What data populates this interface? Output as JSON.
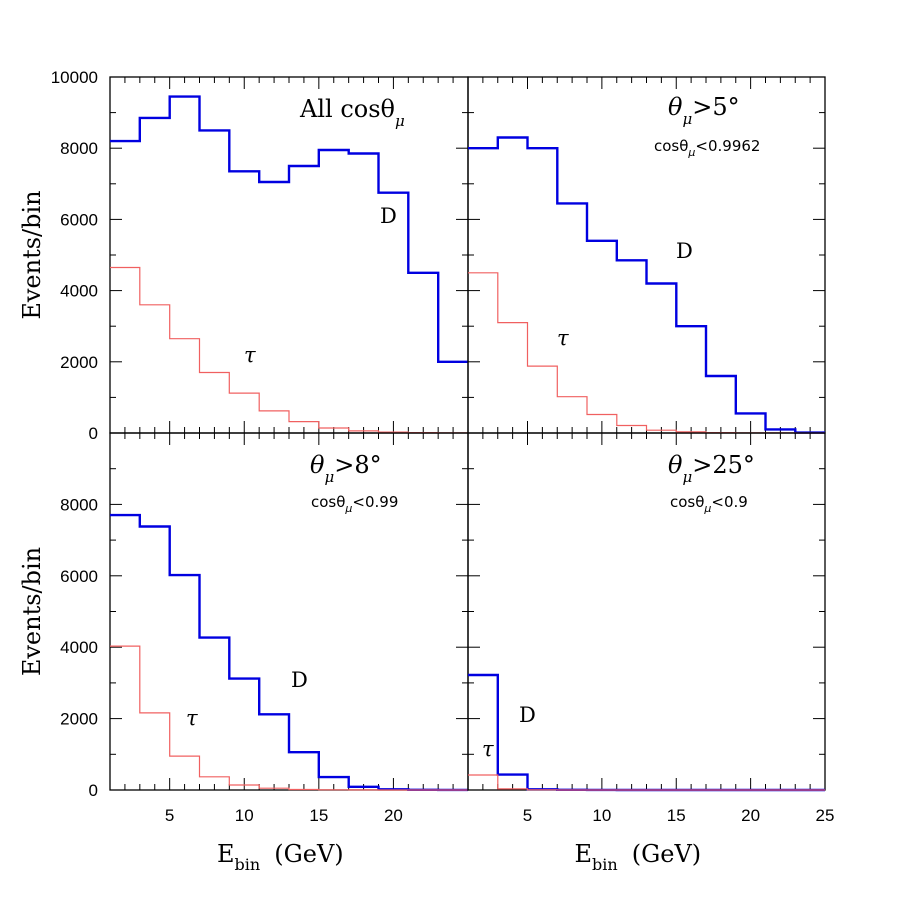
{
  "chart_data": [
    {
      "type": "line",
      "panel": "top-left",
      "title": "All cosθ",
      "title_subscript": "μ",
      "subtitle": "",
      "ylabel": "Events/bin",
      "xlabel": "",
      "xlim": [
        1,
        25
      ],
      "ylim": [
        0,
        10000
      ],
      "y_ticks": [
        "0",
        "2000",
        "4000",
        "6000",
        "8000",
        "10000"
      ],
      "x_ticks": [],
      "bin_edges": [
        1,
        3,
        5,
        7,
        9,
        11,
        13,
        15,
        17,
        19,
        21,
        23,
        25
      ],
      "series": [
        {
          "name": "D",
          "color": "#0000e0",
          "values": [
            8200,
            8850,
            9450,
            8500,
            7350,
            7050,
            7500,
            7950,
            7850,
            6750,
            4500,
            2000
          ]
        },
        {
          "name": "τ",
          "color": "#f06060",
          "values": [
            4650,
            3600,
            2650,
            1700,
            1120,
            620,
            320,
            140,
            60,
            25,
            10,
            5
          ]
        }
      ]
    },
    {
      "type": "line",
      "panel": "top-right",
      "title": "θ",
      "title_subscript": "μ",
      "title_suffix": ">5°",
      "subtitle": "cosθ",
      "subtitle_subscript": "μ",
      "subtitle_suffix": "<0.9962",
      "ylabel": "",
      "xlabel": "",
      "xlim": [
        1,
        25
      ],
      "ylim": [
        0,
        10000
      ],
      "y_ticks": [],
      "x_ticks": [],
      "bin_edges": [
        1,
        3,
        5,
        7,
        9,
        11,
        13,
        15,
        17,
        19,
        21,
        23,
        25
      ],
      "series": [
        {
          "name": "D",
          "color": "#0000e0",
          "values": [
            8000,
            8300,
            8000,
            6450,
            5400,
            4850,
            4200,
            3000,
            1600,
            550,
            100,
            10
          ]
        },
        {
          "name": "τ",
          "color": "#f06060",
          "values": [
            4500,
            3100,
            1880,
            1020,
            520,
            210,
            80,
            30,
            10,
            5,
            2,
            1
          ]
        }
      ]
    },
    {
      "type": "line",
      "panel": "bottom-left",
      "title": "θ",
      "title_subscript": "μ",
      "title_suffix": ">8°",
      "subtitle": "cosθ",
      "subtitle_subscript": "μ",
      "subtitle_suffix": "<0.99",
      "ylabel": "Events/bin",
      "xlabel": "E",
      "xlabel_subscript": "bin",
      "xlabel_suffix": "(GeV)",
      "xlim": [
        1,
        25
      ],
      "ylim": [
        0,
        10000
      ],
      "y_ticks": [
        "0",
        "2000",
        "4000",
        "6000",
        "8000"
      ],
      "x_ticks": [
        "5",
        "10",
        "15",
        "20"
      ],
      "bin_edges": [
        1,
        3,
        5,
        7,
        9,
        11,
        13,
        15,
        17,
        19,
        21,
        23,
        25
      ],
      "series": [
        {
          "name": "D",
          "color": "#0000e0",
          "values": [
            7700,
            7380,
            6020,
            4270,
            3120,
            2120,
            1060,
            360,
            90,
            20,
            5,
            2
          ]
        },
        {
          "name": "τ",
          "color": "#f06060",
          "values": [
            4030,
            2160,
            950,
            370,
            140,
            50,
            15,
            5,
            2,
            1,
            0,
            0
          ]
        }
      ]
    },
    {
      "type": "line",
      "panel": "bottom-right",
      "title": "θ",
      "title_subscript": "μ",
      "title_suffix": ">25°",
      "subtitle": "cosθ",
      "subtitle_subscript": "μ",
      "subtitle_suffix": "<0.9",
      "ylabel": "",
      "xlabel": "E",
      "xlabel_subscript": "bin",
      "xlabel_suffix": "(GeV)",
      "xlim": [
        1,
        25
      ],
      "ylim": [
        0,
        10000
      ],
      "y_ticks": [],
      "x_ticks": [
        "5",
        "10",
        "15",
        "20",
        "25"
      ],
      "bin_edges": [
        1,
        3,
        5,
        7,
        9,
        11,
        13,
        15,
        17,
        19,
        21,
        23,
        25
      ],
      "series": [
        {
          "name": "D",
          "color": "#0000e0",
          "values": [
            3220,
            430,
            20,
            5,
            2,
            1,
            0,
            0,
            0,
            0,
            0,
            0
          ]
        },
        {
          "name": "τ",
          "color": "#f06060",
          "values": [
            420,
            30,
            5,
            1,
            0,
            0,
            0,
            0,
            0,
            0,
            0,
            0
          ]
        }
      ]
    }
  ]
}
